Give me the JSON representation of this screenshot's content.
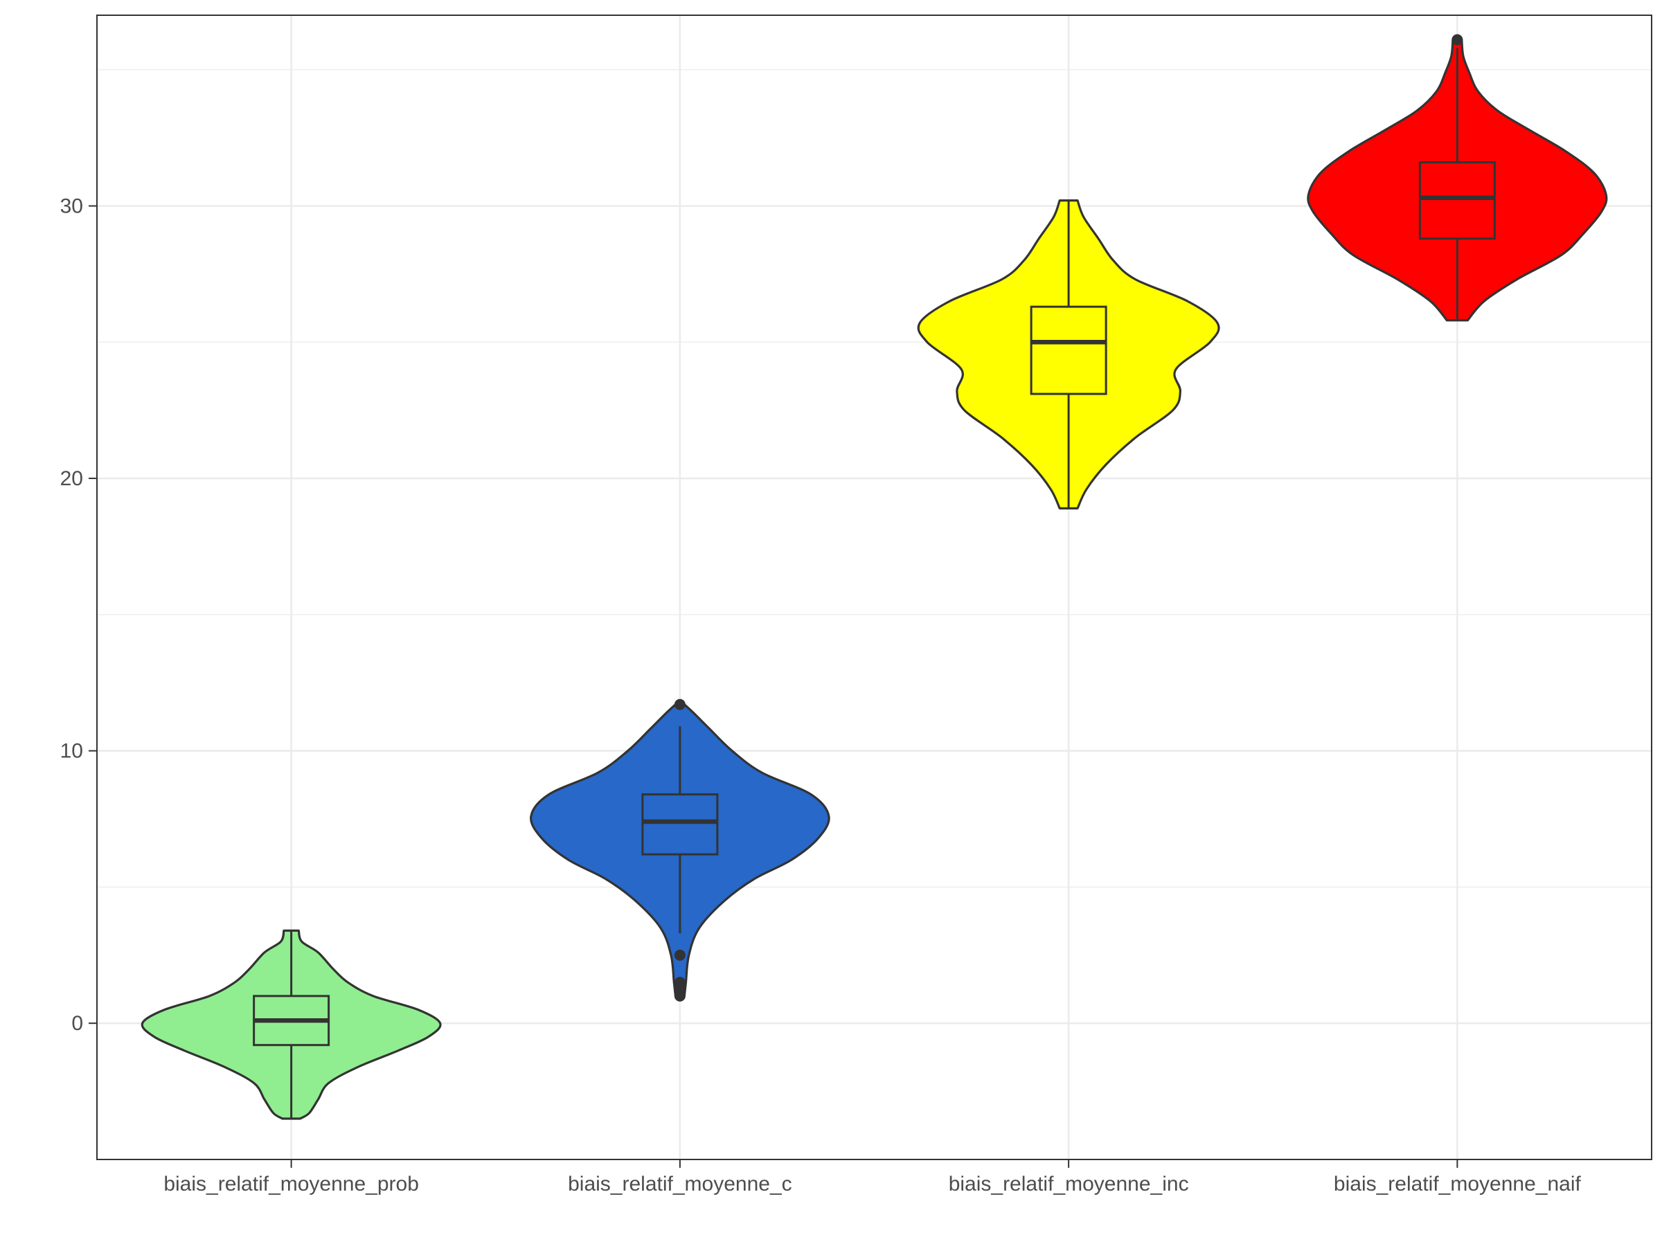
{
  "chart_data": {
    "type": "violin",
    "title": "",
    "xlabel": "",
    "ylabel": "",
    "grid": true,
    "ylim": [
      -5,
      37
    ],
    "y_ticks": [
      0,
      10,
      20,
      30
    ],
    "categories": [
      "biais_relatif_moyenne_prob",
      "biais_relatif_moyenne_c",
      "biais_relatif_moyenne_inc",
      "biais_relatif_moyenne_naif"
    ],
    "series": [
      {
        "category": "biais_relatif_moyenne_prob",
        "fill": "#90EE90",
        "min": -3.5,
        "q1": -0.8,
        "median": 0.1,
        "q3": 1.0,
        "max": 3.4,
        "whisker_low": -3.5,
        "whisker_high": 3.4,
        "outliers": [],
        "density": [
          [
            -3.5,
            0.06
          ],
          [
            -3.3,
            0.12
          ],
          [
            -2.8,
            0.18
          ],
          [
            -2.2,
            0.25
          ],
          [
            -1.6,
            0.45
          ],
          [
            -1.0,
            0.72
          ],
          [
            -0.5,
            0.92
          ],
          [
            0.0,
            1.0
          ],
          [
            0.5,
            0.85
          ],
          [
            1.0,
            0.55
          ],
          [
            1.5,
            0.38
          ],
          [
            2.0,
            0.28
          ],
          [
            2.6,
            0.18
          ],
          [
            3.0,
            0.07
          ],
          [
            3.4,
            0.05
          ]
        ]
      },
      {
        "category": "biais_relatif_moyenne_c",
        "fill": "#2768C8",
        "min": 1.0,
        "q1": 6.2,
        "median": 7.4,
        "q3": 8.4,
        "max": 11.7,
        "whisker_low": 3.3,
        "whisker_high": 10.9,
        "outliers": [
          1.0,
          1.1,
          1.3,
          1.5,
          2.5,
          11.7
        ],
        "density": [
          [
            1.0,
            0.03
          ],
          [
            1.5,
            0.04
          ],
          [
            2.5,
            0.06
          ],
          [
            3.5,
            0.13
          ],
          [
            4.5,
            0.3
          ],
          [
            5.3,
            0.5
          ],
          [
            6.0,
            0.75
          ],
          [
            6.8,
            0.93
          ],
          [
            7.6,
            1.0
          ],
          [
            8.4,
            0.88
          ],
          [
            9.2,
            0.55
          ],
          [
            10.0,
            0.35
          ],
          [
            10.8,
            0.2
          ],
          [
            11.4,
            0.09
          ],
          [
            11.8,
            0.01
          ]
        ]
      },
      {
        "category": "biais_relatif_moyenne_inc",
        "fill": "#FFFF00",
        "min": 18.9,
        "q1": 23.1,
        "median": 25.0,
        "q3": 26.3,
        "max": 30.2,
        "whisker_low": 18.9,
        "whisker_high": 30.2,
        "outliers": [],
        "density": [
          [
            18.9,
            0.06
          ],
          [
            19.6,
            0.12
          ],
          [
            20.5,
            0.25
          ],
          [
            21.5,
            0.45
          ],
          [
            22.5,
            0.7
          ],
          [
            23.2,
            0.75
          ],
          [
            24.0,
            0.72
          ],
          [
            25.0,
            0.95
          ],
          [
            25.7,
            1.0
          ],
          [
            26.5,
            0.8
          ],
          [
            27.3,
            0.45
          ],
          [
            28.0,
            0.3
          ],
          [
            28.8,
            0.2
          ],
          [
            29.6,
            0.1
          ],
          [
            30.2,
            0.06
          ]
        ]
      },
      {
        "category": "biais_relatif_moyenne_naif",
        "fill": "#FF0000",
        "min": 25.8,
        "q1": 28.8,
        "median": 30.3,
        "q3": 31.6,
        "max": 36.1,
        "whisker_low": 25.8,
        "whisker_high": 35.8,
        "outliers": [
          36.1
        ],
        "density": [
          [
            25.8,
            0.07
          ],
          [
            26.5,
            0.18
          ],
          [
            27.3,
            0.4
          ],
          [
            28.2,
            0.7
          ],
          [
            29.0,
            0.85
          ],
          [
            29.8,
            0.97
          ],
          [
            30.4,
            1.0
          ],
          [
            31.2,
            0.92
          ],
          [
            32.0,
            0.73
          ],
          [
            32.8,
            0.48
          ],
          [
            33.5,
            0.27
          ],
          [
            34.2,
            0.14
          ],
          [
            34.9,
            0.08
          ],
          [
            35.5,
            0.04
          ],
          [
            36.1,
            0.03
          ]
        ]
      }
    ]
  }
}
